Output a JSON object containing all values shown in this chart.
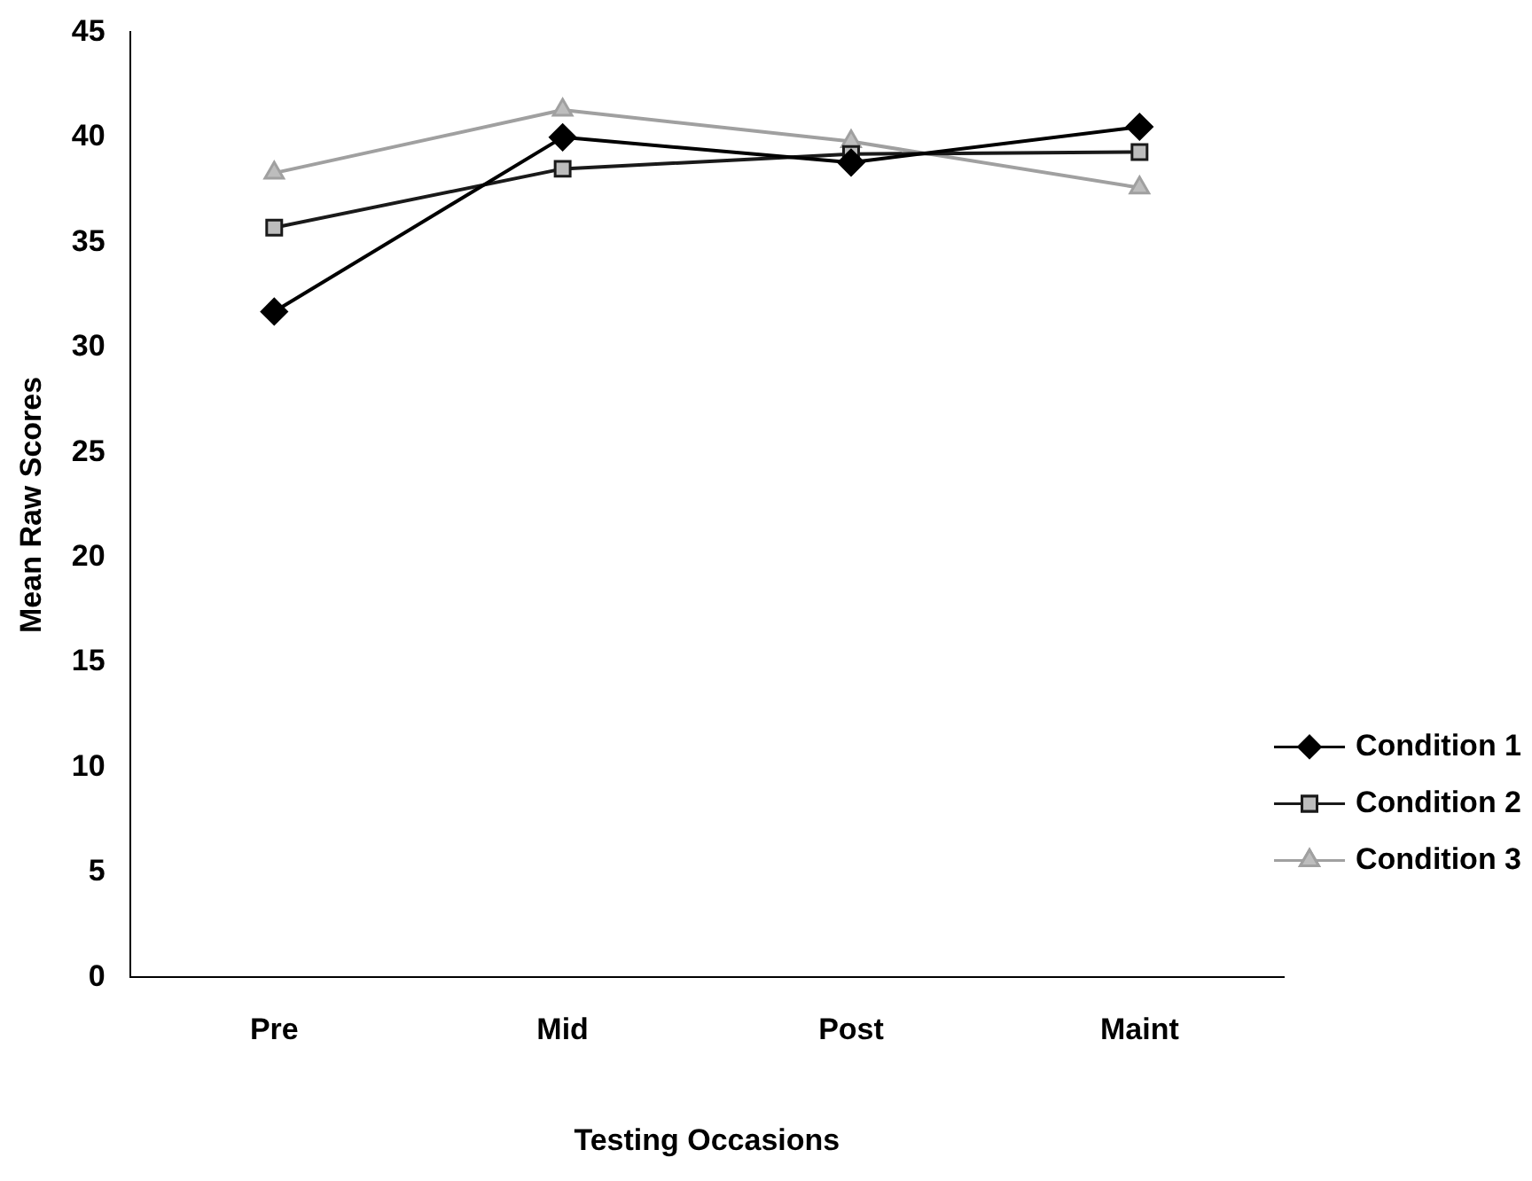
{
  "chart_data": {
    "type": "line",
    "xlabel": "Testing Occasions",
    "ylabel": "Mean Raw Scores",
    "categories": [
      "Pre",
      "Mid",
      "Post",
      "Maint"
    ],
    "series": [
      {
        "name": "Condition 1",
        "color": "#000000",
        "marker": "diamond",
        "values": [
          31.7,
          40,
          38.8,
          40.5
        ]
      },
      {
        "name": "Condition 2",
        "color": "#1a1a1a",
        "marker": "square",
        "values": [
          35.7,
          38.5,
          39.2,
          39.3
        ]
      },
      {
        "name": "Condition 3",
        "color": "#a0a0a0",
        "marker": "triangle",
        "values": [
          38.3,
          41.3,
          39.8,
          37.6
        ]
      }
    ],
    "ylim": [
      0,
      45
    ],
    "yticks": [
      0,
      5,
      10,
      15,
      20,
      25,
      30,
      35,
      40,
      45
    ],
    "grid": false,
    "legend": "bottom right"
  }
}
